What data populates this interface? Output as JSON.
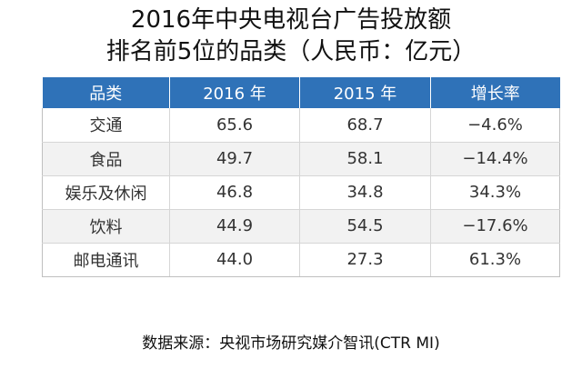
{
  "title_line1": "2016年中央电视台广告投放额",
  "title_line2": "排名前5位的品类（人民币：亿元）",
  "source": "数据来源：央视市场研究媒介智讯(CTR MI)",
  "colors": {
    "header_bg": "#2f72b8",
    "header_text": "#ffffff",
    "stripe_bg": "#f2f2f2"
  },
  "chart_data": {
    "type": "table",
    "columns": [
      "品类",
      "2016 年",
      "2015 年",
      "增长率"
    ],
    "rows": [
      [
        "交通",
        "65.6",
        "68.7",
        "−4.6%"
      ],
      [
        "食品",
        "49.7",
        "58.1",
        "−14.4%"
      ],
      [
        "娱乐及休闲",
        "46.8",
        "34.8",
        "34.3%"
      ],
      [
        "饮料",
        "44.9",
        "54.5",
        "−17.6%"
      ],
      [
        "邮电通讯",
        "44.0",
        "27.3",
        "61.3%"
      ]
    ]
  }
}
